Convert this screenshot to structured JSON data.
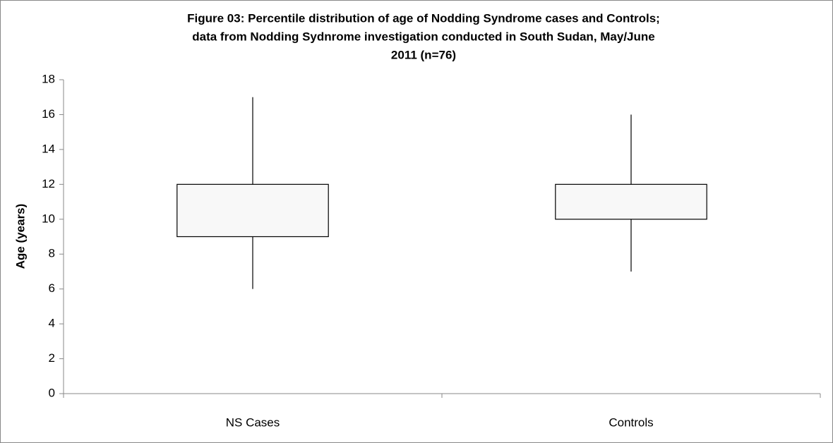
{
  "chart_data": {
    "type": "box",
    "title": [
      "Figure 03: Percentile distribution of age of Nodding Syndrome cases and Controls;",
      "data from Nodding Sydnrome investigation conducted in South Sudan, May/June",
      "2011 (n=76)"
    ],
    "y_label": "Age (years)",
    "categories": [
      "NS Cases",
      "Controls"
    ],
    "boxes": [
      {
        "min": 6,
        "q1": 9,
        "q3": 12,
        "max": 17
      },
      {
        "min": 7,
        "q1": 10,
        "q3": 12,
        "max": 16
      }
    ],
    "color": "#f8f8f8",
    "ylim": [
      0,
      18
    ],
    "yticks": [
      0,
      2,
      4,
      6,
      8,
      10,
      12,
      14,
      16,
      18
    ]
  }
}
